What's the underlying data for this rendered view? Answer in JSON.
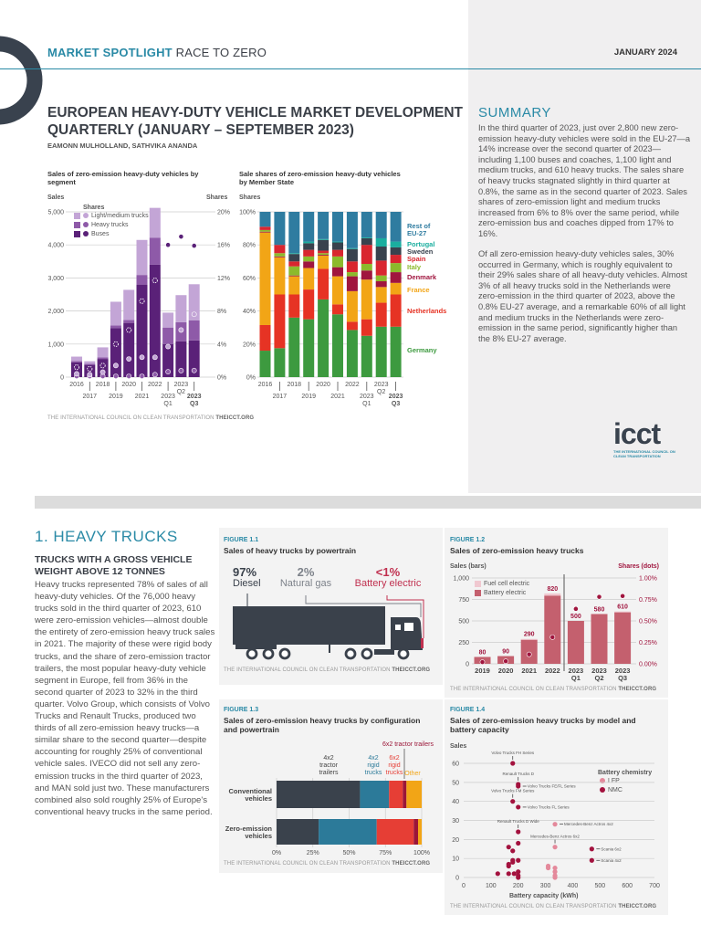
{
  "header": {
    "kicker_bold": "MARKET SPOTLIGHT",
    "kicker_rest": "RACE TO ZERO",
    "date": "JANUARY 2024"
  },
  "doc": {
    "title_line1": "EUROPEAN HEAVY-DUTY VEHICLE MARKET DEVELOPMENT",
    "title_line2": "QUARTERLY (JANUARY – SEPTEMBER 2023)",
    "authors": "EAMONN MULHOLLAND, SATHVIKA ANANDA"
  },
  "credit": {
    "org": "THE INTERNATIONAL COUNCIL ON CLEAN TRANSPORTATION",
    "site": "THEICCT.ORG"
  },
  "logo": {
    "word": "icct",
    "tagline": "THE INTERNATIONAL COUNCIL ON CLEAN TRANSPORTATION"
  },
  "summary": {
    "heading": "SUMMARY",
    "p1": "In the third quarter of 2023, just over 2,800 new zero-emission heavy-duty vehicles were sold in the EU-27—a 14% increase over the second quarter of 2023—including 1,100 buses and coaches, 1,100 light and medium trucks, and 610 heavy trucks. The sales share of heavy trucks stagnated slightly in third quarter at 0.8%, the same as in the second quarter of 2023. Sales shares of zero-emission light and medium trucks increased from 6% to 8% over the same period, while zero-emission bus and coaches dipped from 17% to 16%.",
    "p2": "Of all zero-emission heavy-duty vehicles sales, 30% occurred in Germany, which is roughly equivalent to their 29% sales share of all heavy-duty vehicles. Almost 3% of all heavy trucks sold in the Netherlands were zero-emission in the third quarter of 2023, above the 0.8% EU-27 average, and a remarkable 60% of all light and medium trucks in the Netherlands were zero-emission in the same period, significantly higher than the 8% EU-27 average."
  },
  "section": {
    "heading": "1.  HEAVY TRUCKS",
    "subheading": "TRUCKS WITH A GROSS VEHICLE WEIGHT ABOVE 12 TONNES",
    "body": "Heavy trucks represented 78% of sales of all heavy-duty vehicles. Of the 76,000 heavy trucks sold in the third quarter of 2023, 610 were zero-emission vehicles—almost double the entirety of zero-emission heavy truck sales in 2021. The majority of these were rigid body trucks, and the share of zero-emission tractor trailers, the most popular heavy-duty vehicle segment in Europe, fell from 36% in the second quarter of 2023 to 32% in the third quarter. Volvo Group, which consists of Volvo Trucks and Renault Trucks, produced two thirds of all zero-emission heavy trucks—a similar share to the second quarter—despite accounting for roughly 25% of conventional vehicle sales. IVECO did not sell any zero-emission trucks in the third quarter of 2023, and MAN sold just two. These manufacturers combined also sold roughly 25% of Europe's conventional heavy trucks in the same period."
  },
  "fig11": {
    "label": "FIGURE 1.1",
    "title": "Sales of heavy trucks by powertrain",
    "items": [
      {
        "pct": "97%",
        "name": "Diesel",
        "color": "#3a414b"
      },
      {
        "pct": "2%",
        "name": "Natural gas",
        "color": "#7d828a"
      },
      {
        "pct": "<1%",
        "name": "Battery electric",
        "color": "#c0304f"
      }
    ]
  },
  "chart_data": [
    {
      "id": "segment",
      "type": "bar",
      "title": "Sales of zero-emission heavy-duty vehicles by segment",
      "ylabel": "Sales",
      "y2label": "Shares",
      "legend_title": "Shares",
      "categories": [
        "2016",
        "2017",
        "2018",
        "2019",
        "2020",
        "2021",
        "2022",
        "2023 Q1",
        "2023 Q2",
        "2023 Q3"
      ],
      "xticks_top": [
        "2016",
        "2018",
        "2020",
        "2022",
        "2023\nQ2"
      ],
      "xticks_bottom": [
        "2017",
        "2019",
        "2021",
        "2023\nQ1",
        "2023\nQ3"
      ],
      "ylim": [
        0,
        5000
      ],
      "yticks": [
        "0",
        "1,000",
        "2,000",
        "3,000",
        "4,000",
        "5,000"
      ],
      "y2lim": [
        0,
        20
      ],
      "y2ticks": [
        "0%",
        "4%",
        "8%",
        "12%",
        "16%",
        "20%"
      ],
      "series": [
        {
          "name": "Buses",
          "color": "#5a2178",
          "values": [
            450,
            370,
            550,
            1480,
            1640,
            2800,
            3400,
            1000,
            1080,
            1110
          ],
          "shares": [
            1.2,
            1.0,
            1.4,
            4.0,
            5.7,
            9.2,
            11.7,
            16,
            17,
            15.9
          ]
        },
        {
          "name": "Heavy trucks",
          "color": "#8e5aa8",
          "values": [
            40,
            30,
            50,
            80,
            90,
            290,
            820,
            500,
            580,
            610
          ],
          "shares": [
            0.1,
            0.1,
            0.1,
            0.1,
            0.1,
            0.1,
            0.3,
            0.65,
            0.78,
            0.8
          ]
        },
        {
          "name": "Light/medium trucks",
          "color": "#c3a5d6",
          "values": [
            130,
            80,
            300,
            720,
            910,
            1060,
            900,
            450,
            820,
            1090
          ],
          "shares": [
            0.4,
            0.3,
            0.6,
            1.4,
            2.2,
            2.4,
            2.4,
            3.7,
            5.7,
            7.6
          ]
        }
      ],
      "grid": true
    },
    {
      "id": "member-state",
      "type": "bar",
      "stacked": "100%",
      "title": "Sale shares of zero-emission heavy-duty vehicles by Member State",
      "ylabel": "Shares",
      "categories": [
        "2016",
        "2017",
        "2018",
        "2019",
        "2020",
        "2021",
        "2022",
        "2023 Q1",
        "2023 Q2",
        "2023 Q3"
      ],
      "xticks_top": [
        "2016",
        "2018",
        "2020",
        "2022",
        "2023\nQ2"
      ],
      "xticks_bottom": [
        "2017",
        "2019",
        "2021",
        "2023\nQ1",
        "2023\nQ3"
      ],
      "ylim": [
        0,
        100
      ],
      "yticks": [
        "0%",
        "20%",
        "40%",
        "60%",
        "80%",
        "100%"
      ],
      "legend_placement": "right",
      "series": [
        {
          "name": "Germany",
          "color": "#3d9a3f",
          "values": [
            16,
            17.5,
            36,
            35,
            47,
            38,
            28.5,
            25,
            30.5,
            30.5
          ]
        },
        {
          "name": "Netherlands",
          "color": "#e63324",
          "values": [
            15.5,
            32.5,
            14,
            18,
            18.5,
            6,
            5,
            10,
            14.5,
            19.5
          ]
        },
        {
          "name": "France",
          "color": "#f2a516",
          "values": [
            56,
            22.5,
            11,
            13,
            8,
            17,
            18.5,
            24,
            9.5,
            7
          ]
        },
        {
          "name": "Denmark",
          "color": "#a0153e",
          "values": [
            0.5,
            0.5,
            0.5,
            4,
            0.5,
            5.5,
            9,
            5.5,
            3.5,
            6.5
          ]
        },
        {
          "name": "Italy",
          "color": "#8cba2c",
          "values": [
            1,
            2,
            5.5,
            3,
            1,
            6.5,
            2.5,
            4,
            3.5,
            5.5
          ]
        },
        {
          "name": "Spain",
          "color": "#d9262f",
          "values": [
            2,
            5,
            3,
            4,
            1.5,
            4,
            6.5,
            11.5,
            9,
            5
          ]
        },
        {
          "name": "Sweden",
          "color": "#39424e",
          "values": [
            0,
            0,
            4.5,
            4,
            6.5,
            4.5,
            7.5,
            4,
            8.5,
            4.5
          ]
        },
        {
          "name": "Portugal",
          "color": "#1aae9f",
          "values": [
            0,
            0,
            0.5,
            1,
            0.5,
            0.5,
            0.5,
            0.5,
            5,
            3.5
          ]
        },
        {
          "name": "Rest of EU-27",
          "color": "#2f7ca0",
          "values": [
            9,
            20,
            25,
            18,
            16.5,
            18,
            22,
            15.5,
            16,
            18
          ]
        }
      ],
      "grid": true
    },
    {
      "id": "fig12",
      "type": "bar",
      "label": "FIGURE 1.2",
      "title": "Sales of zero-emission heavy trucks",
      "ylabel": "Sales (bars)",
      "y2label": "Shares (dots)",
      "categories": [
        "2019",
        "2020",
        "2021",
        "2022",
        "2023\nQ1",
        "2023\nQ2",
        "2023\nQ3"
      ],
      "ylim": [
        0,
        1000
      ],
      "yticks": [
        "0",
        "250",
        "500",
        "750",
        "1,000"
      ],
      "y2lim": [
        0,
        1
      ],
      "y2ticks": [
        "0.00%",
        "0.25%",
        "0.50%",
        "0.75%",
        "1.00%"
      ],
      "totals": [
        "80",
        "90",
        "290",
        "820",
        "500",
        "580",
        "610"
      ],
      "series": [
        {
          "name": "Battery electric",
          "color": "#c4606e",
          "values": [
            80,
            90,
            280,
            795,
            500,
            580,
            600
          ]
        },
        {
          "name": "Fuel cell electric",
          "color": "#f0c8d0",
          "values": [
            0,
            0,
            10,
            25,
            0,
            0,
            10
          ]
        }
      ],
      "shares": [
        0.02,
        0.03,
        0.11,
        0.31,
        0.64,
        0.78,
        0.79
      ],
      "share_color": "#a0153e",
      "grid": true
    },
    {
      "id": "fig13",
      "type": "bar",
      "orientation": "horizontal",
      "stacked": "100%",
      "label": "FIGURE 1.3",
      "title": "Sales of zero-emission heavy trucks by configuration and powertrain",
      "categories": [
        "Conventional vehicles",
        "Zero-emission vehicles"
      ],
      "xlim": [
        0,
        100
      ],
      "xticks": [
        "0%",
        "25%",
        "50%",
        "75%",
        "100%"
      ],
      "series": [
        {
          "name": "4x2 tractor trailers",
          "color": "#3a424c",
          "values": [
            57.5,
            29
          ]
        },
        {
          "name": "4x2 rigid trucks",
          "color": "#2c7a99",
          "values": [
            20,
            40
          ]
        },
        {
          "name": "6x2 rigid trucks",
          "color": "#e63e35",
          "values": [
            9.5,
            25.5
          ]
        },
        {
          "name": "6x2 tractor trailers",
          "color": "#9b1638",
          "values": [
            2.5,
            3
          ]
        },
        {
          "name": "Other",
          "color": "#f2a516",
          "values": [
            10.5,
            2.5
          ]
        }
      ],
      "grid": true
    },
    {
      "id": "fig14",
      "type": "scatter",
      "label": "FIGURE 1.4",
      "title": "Sales of zero-emission heavy trucks by model and battery capacity",
      "xlabel": "Battery capacity (kWh)",
      "ylabel": "Sales",
      "legend_title": "Battery chemistry",
      "xlim": [
        0,
        700
      ],
      "xticks": [
        "0",
        "100",
        "200",
        "300",
        "400",
        "500",
        "600",
        "700"
      ],
      "ylim": [
        0,
        60
      ],
      "yticks": [
        "0",
        "10",
        "20",
        "30",
        "40",
        "50",
        "60"
      ],
      "series": [
        {
          "name": "LFP",
          "color": "#e4899b",
          "points": [
            [
              335,
              28
            ],
            [
              335,
              16
            ],
            [
              310,
              6
            ],
            [
              310,
              5
            ],
            [
              335,
              5
            ],
            [
              335,
              3
            ],
            [
              335,
              1
            ],
            [
              335,
              0
            ]
          ]
        },
        {
          "name": "NMC",
          "color": "#a3123e",
          "points": [
            [
              180,
              60
            ],
            [
              200,
              49
            ],
            [
              200,
              48
            ],
            [
              180,
              40
            ],
            [
              200,
              37
            ],
            [
              200,
              24
            ],
            [
              200,
              18
            ],
            [
              165,
              16
            ],
            [
              180,
              14
            ],
            [
              470,
              15
            ],
            [
              470,
              9
            ],
            [
              180,
              9
            ],
            [
              200,
              9
            ],
            [
              180,
              8
            ],
            [
              165,
              7
            ],
            [
              165,
              6
            ],
            [
              125,
              2
            ],
            [
              165,
              2
            ],
            [
              185,
              2
            ],
            [
              200,
              3
            ],
            [
              200,
              1
            ],
            [
              200,
              0
            ]
          ]
        }
      ],
      "annotations": [
        {
          "text": "Volvo Trucks FH Series",
          "x": 180,
          "y": 60,
          "pos": "above"
        },
        {
          "text": "Renault Trucks D",
          "x": 200,
          "y": 49,
          "pos": "above"
        },
        {
          "text": "Volvo Trucks FE/FL Series",
          "x": 200,
          "y": 48,
          "pos": "right"
        },
        {
          "text": "Volvo Trucks FM Series",
          "x": 180,
          "y": 40,
          "pos": "above"
        },
        {
          "text": "Volvo Trucks FL Series",
          "x": 200,
          "y": 37,
          "pos": "right"
        },
        {
          "text": "Renault Trucks D Wide",
          "x": 200,
          "y": 24,
          "pos": "above"
        },
        {
          "text": "Mercedes-Benz Actros 4x2",
          "x": 335,
          "y": 28,
          "pos": "right"
        },
        {
          "text": "Mercedes-Benz Actros 6x2",
          "x": 335,
          "y": 16,
          "pos": "above"
        },
        {
          "text": "Scania 6x2",
          "x": 470,
          "y": 15,
          "pos": "right"
        },
        {
          "text": "Scania 4x2",
          "x": 470,
          "y": 9,
          "pos": "right"
        }
      ],
      "grid": true
    }
  ]
}
